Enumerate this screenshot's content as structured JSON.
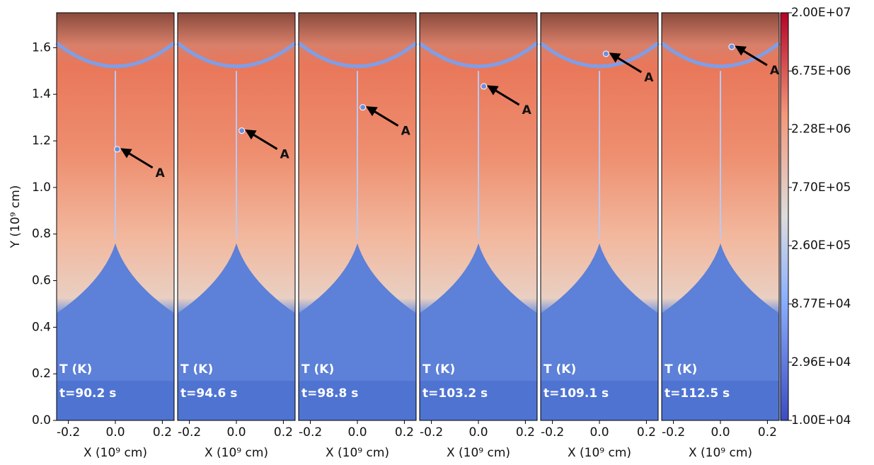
{
  "chart_data": {
    "type": "heatmap",
    "ylabel": "Y (10⁹ cm)",
    "xlabel": "X (10⁹ cm)",
    "ylim": [
      0,
      1.75
    ],
    "yticks": [
      {
        "value": 0,
        "label": "0.0"
      },
      0.2,
      0.4,
      0.6,
      0.8,
      {
        "value": 1,
        "label": "1.0"
      },
      1.2,
      1.4,
      1.6
    ],
    "xlim": [
      -0.25,
      0.25
    ],
    "xticks": [
      -0.2,
      {
        "value": 0,
        "label": "0.0"
      },
      0.2
    ],
    "panels": [
      {
        "quantity": "T (K)",
        "time": "t=90.2 s",
        "annotation": {
          "text": "A",
          "x": 0.02,
          "y": 1.17
        }
      },
      {
        "quantity": "T (K)",
        "time": "t=94.6 s",
        "annotation": {
          "text": "A",
          "x": 0.035,
          "y": 1.25
        }
      },
      {
        "quantity": "T (K)",
        "time": "t=98.8 s",
        "annotation": {
          "text": "A",
          "x": 0.035,
          "y": 1.35
        }
      },
      {
        "quantity": "T (K)",
        "time": "t=103.2 s",
        "annotation": {
          "text": "A",
          "x": 0.035,
          "y": 1.44
        }
      },
      {
        "quantity": "T (K)",
        "time": "t=109.1 s",
        "annotation": {
          "text": "A",
          "x": 0.04,
          "y": 1.58
        }
      },
      {
        "quantity": "T (K)",
        "time": "t=112.5 s",
        "annotation": {
          "text": "A",
          "x": 0.06,
          "y": 1.61
        }
      }
    ],
    "colorbar": {
      "scale": "log",
      "lim": [
        10000,
        20000000
      ],
      "ticks": [
        {
          "value": 10000,
          "label": "1.00E+04"
        },
        {
          "value": 29600,
          "label": "2.96E+04"
        },
        {
          "value": 87700,
          "label": "8.77E+04"
        },
        {
          "value": 260000,
          "label": "2.60E+05"
        },
        {
          "value": 770000,
          "label": "7.70E+05"
        },
        {
          "value": 2280000,
          "label": "2.28E+06"
        },
        {
          "value": 6750000,
          "label": "6.75E+06"
        },
        {
          "value": 20000000,
          "label": "2.00E+07"
        }
      ]
    }
  }
}
